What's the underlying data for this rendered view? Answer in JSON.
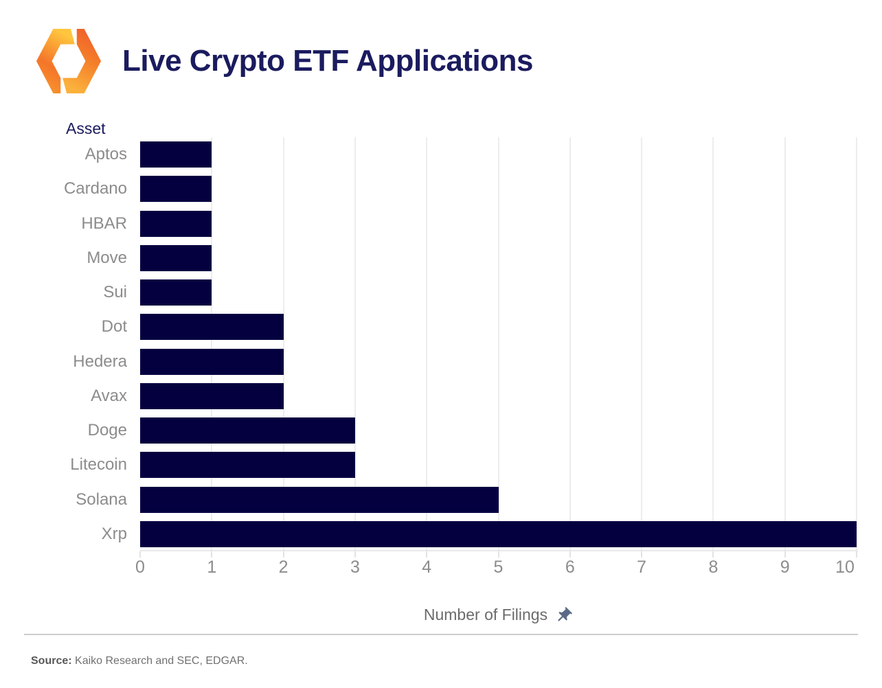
{
  "header": {
    "title": "Live Crypto ETF Applications"
  },
  "chart_data": {
    "type": "bar",
    "orientation": "horizontal",
    "title": "Live Crypto ETF Applications",
    "ylabel": "Asset",
    "xlabel": "Number of Filings",
    "categories": [
      "Aptos",
      "Cardano",
      "HBAR",
      "Move",
      "Sui",
      "Dot",
      "Hedera",
      "Avax",
      "Doge",
      "Litecoin",
      "Solana",
      "Xrp"
    ],
    "values": [
      1,
      1,
      1,
      1,
      1,
      2,
      2,
      2,
      3,
      3,
      5,
      10
    ],
    "xlim": [
      0,
      10
    ],
    "xticks": [
      0,
      1,
      2,
      3,
      4,
      5,
      6,
      7,
      8,
      9,
      10
    ],
    "grid": "vertical-light",
    "legend": "none",
    "bar_color": "#04003f",
    "gridline_color": "#ededed",
    "label_color": "#8c8c8c",
    "axis_title_color": "#6b6b6b"
  },
  "icons": {
    "pushpin": "pushpin-icon",
    "pushpin_color": "#5b6b87"
  },
  "footer": {
    "source_label": "Source:",
    "source_text": " Kaiko Research and SEC, EDGAR."
  },
  "colors": {
    "title_navy": "#1b1b5f",
    "bar_navy": "#04003f",
    "logo_yellow": "#ffc53e",
    "logo_orange": "#f4752a",
    "logo_deep_orange": "#f0592b"
  }
}
